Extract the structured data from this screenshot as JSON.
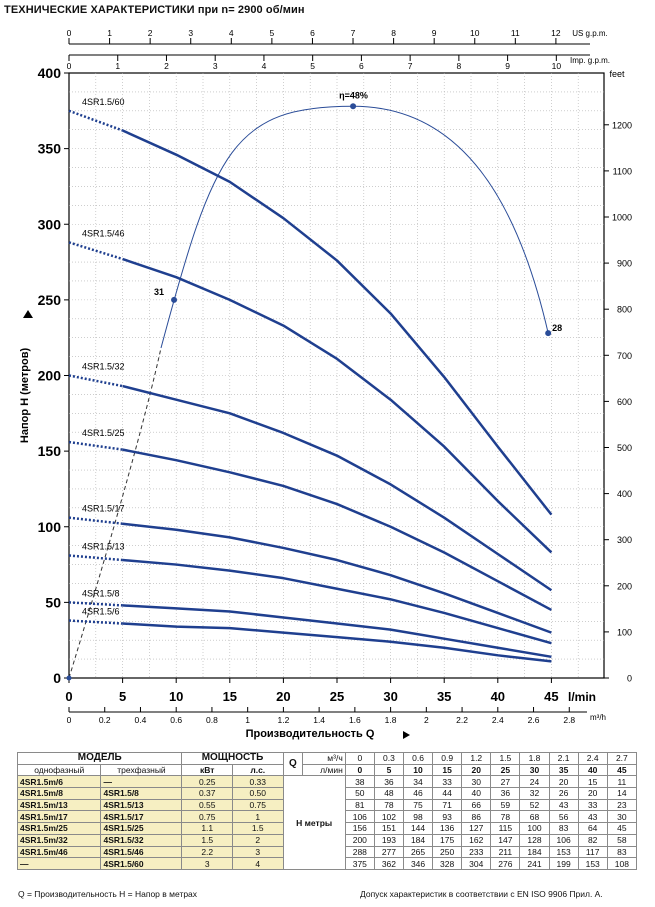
{
  "title": "ТЕХНИЧЕСКИЕ ХАРАКТЕРИСТИКИ при n= 2900 об/мин",
  "chart_data": {
    "type": "line",
    "ylabel": "Напор Н (метров)",
    "xlabel": "Производительность Q",
    "x_unit_main": "l/min",
    "x_unit_m3h": "m³/h",
    "right_unit": "feet",
    "top_axis1_unit": "US g.p.m.",
    "top_axis2_unit": "Imp. g.p.m.",
    "xlim": [
      0,
      50
    ],
    "ylim": [
      0,
      400
    ],
    "x_ticks": [
      0,
      5,
      10,
      15,
      20,
      25,
      30,
      35,
      40,
      45
    ],
    "y_ticks": [
      0,
      50,
      100,
      150,
      200,
      250,
      300,
      350,
      400
    ],
    "m3h_ticks": [
      "0",
      "0.2",
      "0.4",
      "0.6",
      "0.8",
      "1",
      "1.2",
      "1.4",
      "1.6",
      "1.8",
      "2",
      "2.2",
      "2.4",
      "2.6",
      "2.8"
    ],
    "usgpm_ticks": [
      "0",
      "1",
      "2",
      "3",
      "4",
      "5",
      "6",
      "7",
      "8",
      "9",
      "10",
      "11",
      "12"
    ],
    "impgpm_ticks": [
      "0",
      "1",
      "2",
      "3",
      "4",
      "5",
      "6",
      "7",
      "8",
      "9",
      "10"
    ],
    "feet_ticks": [
      "0",
      "100",
      "200",
      "300",
      "400",
      "500",
      "600",
      "700",
      "800",
      "900",
      "1000",
      "1100",
      "1200"
    ],
    "series": [
      {
        "name": "4SR1.5/60",
        "x": [
          0,
          5,
          10,
          15,
          20,
          25,
          30,
          35,
          40,
          45
        ],
        "y": [
          375,
          362,
          346,
          328,
          304,
          276,
          241,
          199,
          153,
          108
        ]
      },
      {
        "name": "4SR1.5/46",
        "x": [
          0,
          5,
          10,
          15,
          20,
          25,
          30,
          35,
          40,
          45
        ],
        "y": [
          288,
          277,
          265,
          250,
          233,
          211,
          184,
          153,
          117,
          83
        ]
      },
      {
        "name": "4SR1.5/32",
        "x": [
          0,
          5,
          10,
          15,
          20,
          25,
          30,
          35,
          40,
          45
        ],
        "y": [
          200,
          193,
          184,
          175,
          162,
          147,
          128,
          106,
          82,
          58
        ]
      },
      {
        "name": "4SR1.5/25",
        "x": [
          0,
          5,
          10,
          15,
          20,
          25,
          30,
          35,
          40,
          45
        ],
        "y": [
          156,
          151,
          144,
          136,
          127,
          115,
          100,
          83,
          64,
          45
        ]
      },
      {
        "name": "4SR1.5/17",
        "x": [
          0,
          5,
          10,
          15,
          20,
          25,
          30,
          35,
          40,
          45
        ],
        "y": [
          106,
          102,
          98,
          93,
          86,
          78,
          68,
          56,
          43,
          30
        ]
      },
      {
        "name": "4SR1.5/13",
        "x": [
          0,
          5,
          10,
          15,
          20,
          25,
          30,
          35,
          40,
          45
        ],
        "y": [
          81,
          78,
          75,
          71,
          66,
          59,
          52,
          43,
          33,
          23
        ]
      },
      {
        "name": "4SR1.5/8",
        "x": [
          0,
          5,
          10,
          15,
          20,
          25,
          30,
          35,
          40,
          45
        ],
        "y": [
          50,
          48,
          46,
          44,
          40,
          36,
          32,
          26,
          20,
          14
        ]
      },
      {
        "name": "4SR1.5/6",
        "x": [
          0,
          5,
          10,
          15,
          20,
          25,
          30,
          35,
          40,
          45
        ],
        "y": [
          38,
          36,
          34,
          33,
          30,
          27,
          24,
          20,
          15,
          11
        ]
      }
    ],
    "efficiency": {
      "peak_label": "η=48%",
      "peak": [
        26.5,
        378
      ],
      "left_label": "31",
      "left_point": [
        9.8,
        250
      ],
      "right_label": "28",
      "right_point": [
        44.7,
        228
      ]
    },
    "grid": true
  },
  "table": {
    "model_header": "МОДЕЛЬ",
    "power_header": "МОЩНОСТЬ",
    "single_phase": "однофазный",
    "three_phase": "трехфазный",
    "kw": "кВт",
    "hp": "л.с.",
    "q_letter": "Q",
    "h_label": "H метры",
    "m3h_unit": "м³/ч",
    "lmin_unit": "л/мин",
    "m3h_values": [
      "0",
      "0.3",
      "0.6",
      "0.9",
      "1.2",
      "1.5",
      "1.8",
      "2.1",
      "2.4",
      "2.7"
    ],
    "lmin_values": [
      "0",
      "5",
      "10",
      "15",
      "20",
      "25",
      "30",
      "35",
      "40",
      "45"
    ],
    "rows": [
      {
        "single": "4SR1.5m/6",
        "three": "—",
        "kw": "0.25",
        "hp": "0.33",
        "h": [
          "38",
          "36",
          "34",
          "33",
          "30",
          "27",
          "24",
          "20",
          "15",
          "11"
        ]
      },
      {
        "single": "4SR1.5m/8",
        "three": "4SR1.5/8",
        "kw": "0.37",
        "hp": "0.50",
        "h": [
          "50",
          "48",
          "46",
          "44",
          "40",
          "36",
          "32",
          "26",
          "20",
          "14"
        ]
      },
      {
        "single": "4SR1.5m/13",
        "three": "4SR1.5/13",
        "kw": "0.55",
        "hp": "0.75",
        "h": [
          "81",
          "78",
          "75",
          "71",
          "66",
          "59",
          "52",
          "43",
          "33",
          "23"
        ]
      },
      {
        "single": "4SR1.5m/17",
        "three": "4SR1.5/17",
        "kw": "0.75",
        "hp": "1",
        "h": [
          "106",
          "102",
          "98",
          "93",
          "86",
          "78",
          "68",
          "56",
          "43",
          "30"
        ]
      },
      {
        "single": "4SR1.5m/25",
        "three": "4SR1.5/25",
        "kw": "1.1",
        "hp": "1.5",
        "h": [
          "156",
          "151",
          "144",
          "136",
          "127",
          "115",
          "100",
          "83",
          "64",
          "45"
        ]
      },
      {
        "single": "4SR1.5m/32",
        "three": "4SR1.5/32",
        "kw": "1.5",
        "hp": "2",
        "h": [
          "200",
          "193",
          "184",
          "175",
          "162",
          "147",
          "128",
          "106",
          "82",
          "58"
        ]
      },
      {
        "single": "4SR1.5m/46",
        "three": "4SR1.5/46",
        "kw": "2.2",
        "hp": "3",
        "h": [
          "288",
          "277",
          "265",
          "250",
          "233",
          "211",
          "184",
          "153",
          "117",
          "83"
        ]
      },
      {
        "single": "—",
        "three": "4SR1.5/60",
        "kw": "3",
        "hp": "4",
        "h": [
          "375",
          "362",
          "346",
          "328",
          "304",
          "276",
          "241",
          "199",
          "153",
          "108"
        ]
      }
    ]
  },
  "footer_left": "Q = Производительность    H = Напор в метрах",
  "footer_right": "Допуск характеристик в соответствии с EN ISO 9906 Прил. А.",
  "colors": {
    "curve": "#1f3f8f",
    "eff": "#2a4c98",
    "grid": "#b0b0b0",
    "table_highlight": "#f6efc2"
  }
}
